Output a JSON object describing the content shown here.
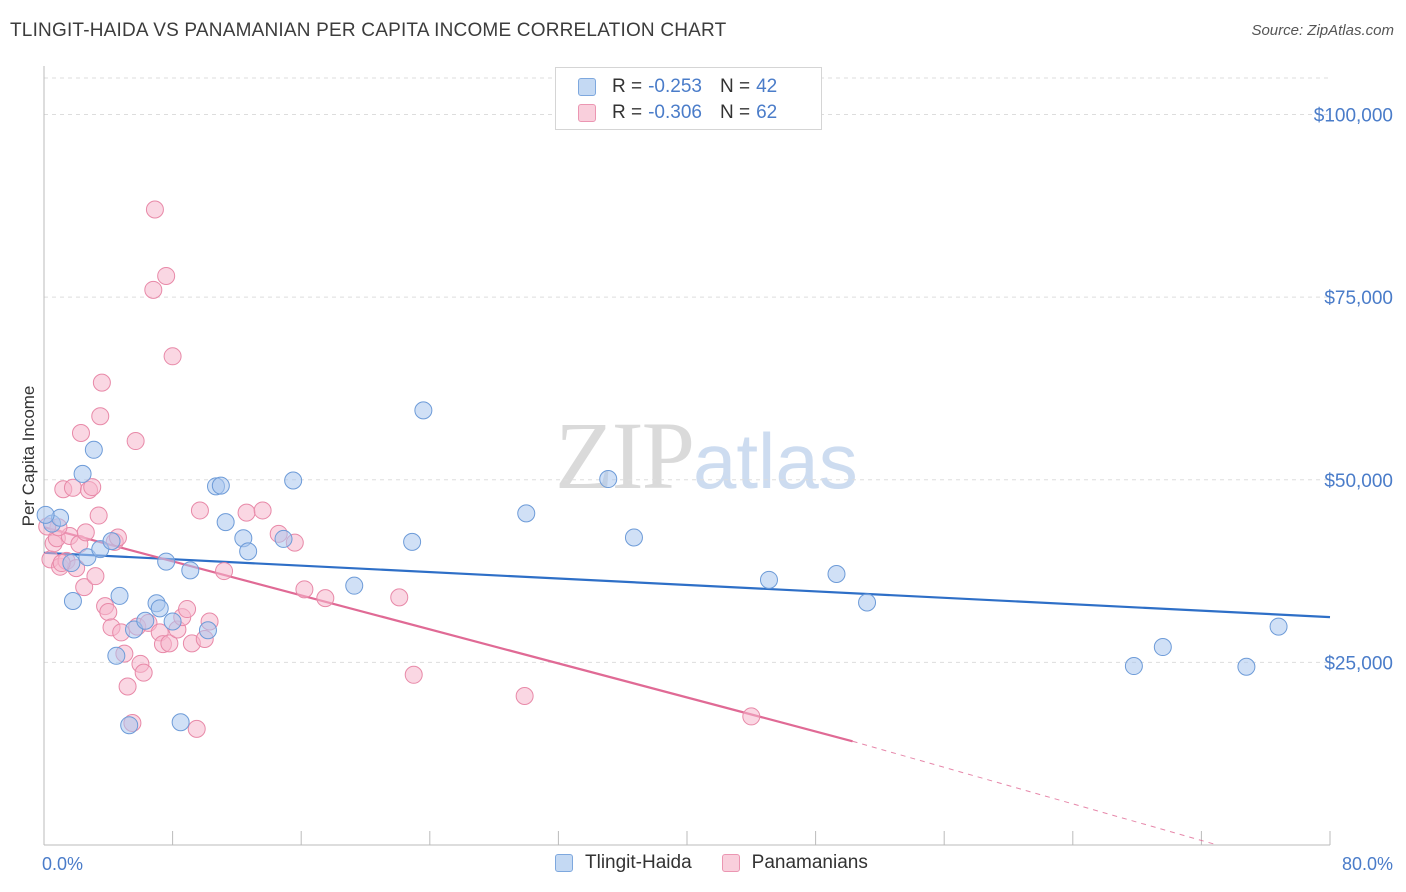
{
  "title": "TLINGIT-HAIDA VS PANAMANIAN PER CAPITA INCOME CORRELATION CHART",
  "source": "Source: ZipAtlas.com",
  "watermark": {
    "zip": "ZIP",
    "atlas": "atlas"
  },
  "legend_top": [
    {
      "r_label": "R =",
      "r_value": "-0.253",
      "n_label": "N =",
      "n_value": "42",
      "color": "#a9c7ee"
    },
    {
      "r_label": "R =",
      "r_value": "-0.306",
      "n_label": "N =",
      "n_value": "62",
      "color": "#f5b6cc"
    }
  ],
  "legend_bottom": [
    "Tlingit-Haida",
    "Panamanians"
  ],
  "colors": {
    "blue_fill": "#a9c7ee",
    "blue_stroke": "#6d9bd8",
    "blue_line": "#2e6fc7",
    "pink_fill": "#f5b6cc",
    "pink_stroke": "#e889a8",
    "pink_line": "#e06a95",
    "tick_blue": "#4a7cc9"
  },
  "chart_data": {
    "type": "scatter",
    "title": "TLINGIT-HAIDA VS PANAMANIAN PER CAPITA INCOME CORRELATION CHART",
    "xlabel": "",
    "ylabel": "Per Capita Income",
    "xlim": [
      0,
      80
    ],
    "ylim": [
      0,
      105000
    ],
    "x_tick_labels": [
      "0.0%",
      "80.0%"
    ],
    "y_ticks": [
      25000,
      50000,
      75000,
      100000
    ],
    "y_tick_labels": [
      "$25,000",
      "$50,000",
      "$75,000",
      "$100,000"
    ],
    "grid": "horizontal dashed",
    "legend": "top-center",
    "series": [
      {
        "name": "Tlingit-Haida",
        "color": "#a9c7ee",
        "trend": {
          "x": [
            0,
            80
          ],
          "y": [
            40000,
            31200
          ]
        },
        "points": [
          [
            0.5,
            44000
          ],
          [
            1.0,
            44800
          ],
          [
            1.7,
            38600
          ],
          [
            1.8,
            33400
          ],
          [
            2.4,
            50800
          ],
          [
            2.7,
            39400
          ],
          [
            3.1,
            54100
          ],
          [
            3.5,
            40500
          ],
          [
            4.2,
            41600
          ],
          [
            4.5,
            25900
          ],
          [
            4.7,
            34100
          ],
          [
            5.3,
            16400
          ],
          [
            5.6,
            29500
          ],
          [
            6.3,
            30700
          ],
          [
            7.0,
            33100
          ],
          [
            7.2,
            32400
          ],
          [
            7.6,
            38800
          ],
          [
            8.0,
            30600
          ],
          [
            8.5,
            16800
          ],
          [
            9.1,
            37600
          ],
          [
            10.2,
            29400
          ],
          [
            10.7,
            49100
          ],
          [
            11.0,
            49200
          ],
          [
            11.3,
            44200
          ],
          [
            12.4,
            42000
          ],
          [
            12.7,
            40200
          ],
          [
            14.9,
            41900
          ],
          [
            15.5,
            49900
          ],
          [
            19.3,
            35500
          ],
          [
            22.9,
            41500
          ],
          [
            23.6,
            59500
          ],
          [
            30.0,
            45400
          ],
          [
            35.1,
            50100
          ],
          [
            36.7,
            42100
          ],
          [
            45.1,
            36300
          ],
          [
            49.3,
            37100
          ],
          [
            51.2,
            33200
          ],
          [
            67.8,
            24500
          ],
          [
            69.6,
            27100
          ],
          [
            74.8,
            24400
          ],
          [
            76.8,
            29900
          ],
          [
            0.1,
            45200
          ]
        ]
      },
      {
        "name": "Panamanians",
        "color": "#f5b6cc",
        "trend": {
          "x": [
            0,
            50.3
          ],
          "y": [
            43500,
            14200
          ]
        },
        "trend_dashed": {
          "x": [
            50.3,
            73
          ],
          "y": [
            14200,
            0
          ]
        },
        "points": [
          [
            0.4,
            39100
          ],
          [
            0.6,
            41300
          ],
          [
            0.8,
            42000
          ],
          [
            1.0,
            38100
          ],
          [
            1.2,
            48700
          ],
          [
            1.4,
            38900
          ],
          [
            1.6,
            42300
          ],
          [
            1.8,
            48900
          ],
          [
            2.0,
            37900
          ],
          [
            2.2,
            41200
          ],
          [
            2.3,
            56400
          ],
          [
            2.5,
            35300
          ],
          [
            2.6,
            42800
          ],
          [
            2.8,
            48600
          ],
          [
            3.0,
            49000
          ],
          [
            3.2,
            36800
          ],
          [
            3.4,
            45100
          ],
          [
            3.5,
            58700
          ],
          [
            3.6,
            63300
          ],
          [
            3.8,
            32700
          ],
          [
            4.0,
            31900
          ],
          [
            4.2,
            29800
          ],
          [
            4.4,
            41500
          ],
          [
            4.6,
            42100
          ],
          [
            4.8,
            29100
          ],
          [
            5.0,
            26200
          ],
          [
            5.2,
            21700
          ],
          [
            5.5,
            16700
          ],
          [
            5.7,
            55300
          ],
          [
            5.8,
            29900
          ],
          [
            6.0,
            24800
          ],
          [
            6.2,
            23600
          ],
          [
            6.5,
            30400
          ],
          [
            6.8,
            76000
          ],
          [
            6.9,
            87000
          ],
          [
            7.2,
            29100
          ],
          [
            7.4,
            27500
          ],
          [
            7.6,
            77900
          ],
          [
            7.8,
            27600
          ],
          [
            8.0,
            66900
          ],
          [
            8.3,
            29500
          ],
          [
            8.6,
            31200
          ],
          [
            8.9,
            32300
          ],
          [
            9.2,
            27600
          ],
          [
            9.5,
            15900
          ],
          [
            9.7,
            45800
          ],
          [
            10.0,
            28200
          ],
          [
            10.3,
            30600
          ],
          [
            11.2,
            37500
          ],
          [
            12.6,
            45500
          ],
          [
            13.6,
            45800
          ],
          [
            14.6,
            42600
          ],
          [
            15.6,
            41400
          ],
          [
            16.2,
            35000
          ],
          [
            17.5,
            33800
          ],
          [
            22.1,
            33900
          ],
          [
            23.0,
            23300
          ],
          [
            29.9,
            20400
          ],
          [
            44.0,
            17600
          ],
          [
            0.9,
            43500
          ],
          [
            1.1,
            38600
          ],
          [
            0.2,
            43600
          ]
        ]
      }
    ]
  }
}
